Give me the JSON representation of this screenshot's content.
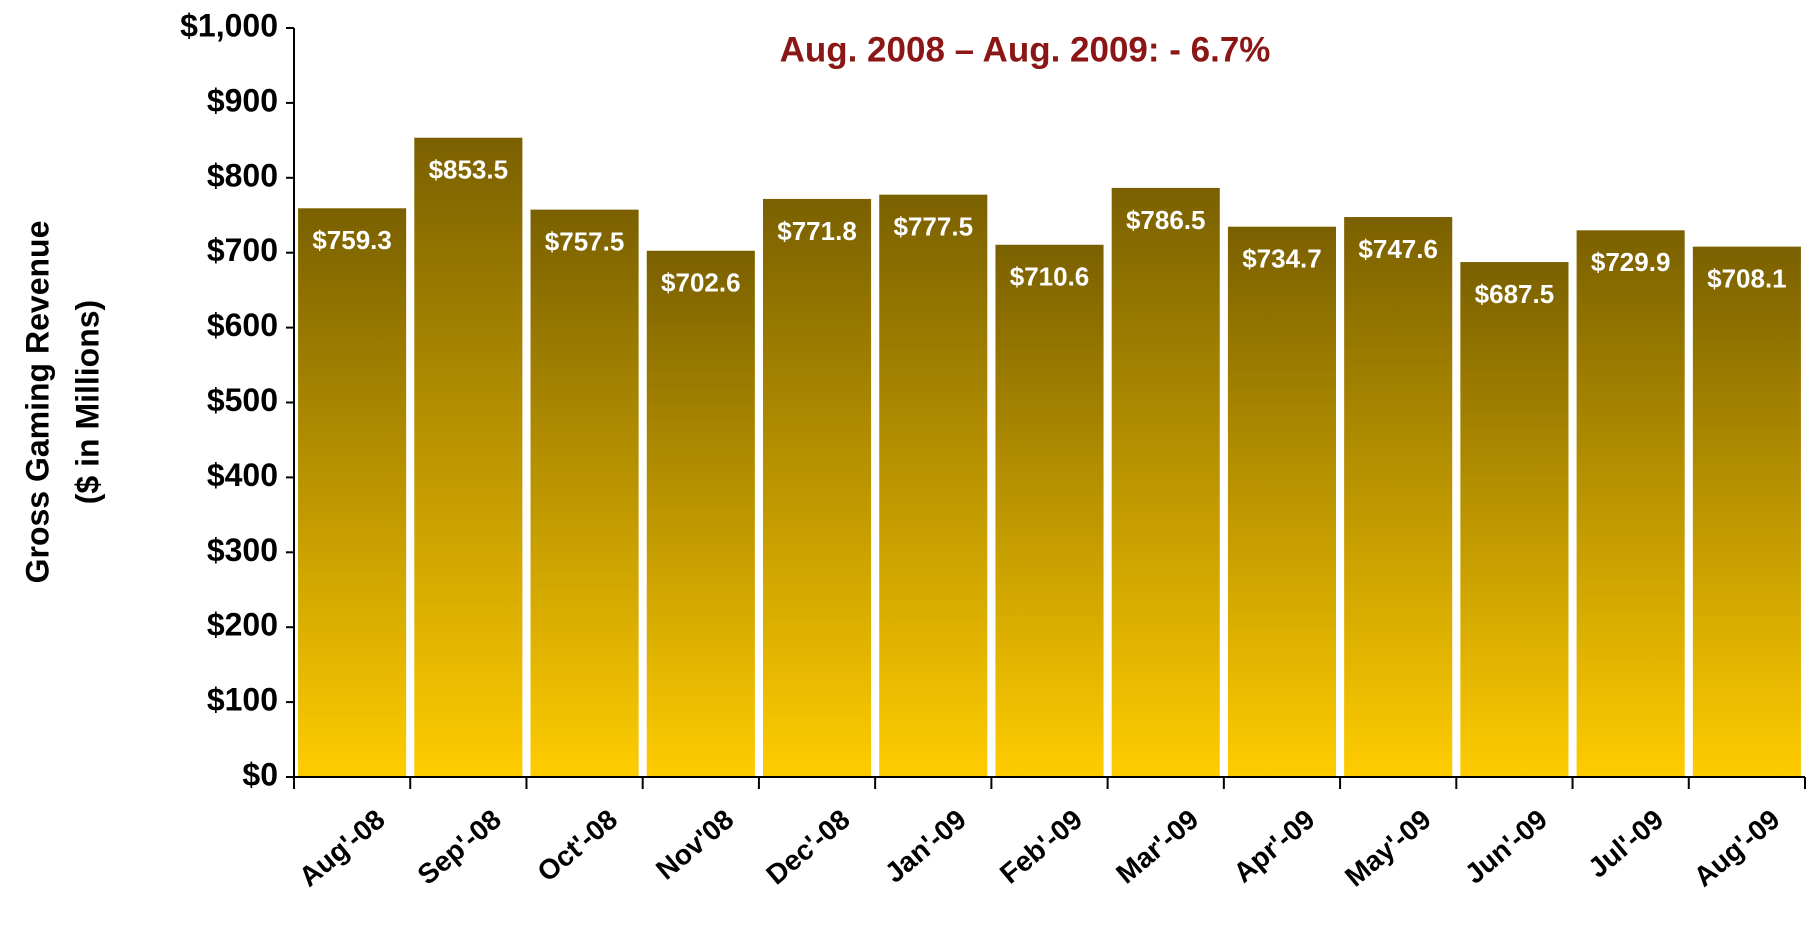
{
  "chart_data": {
    "type": "bar",
    "annotation": "Aug. 2008 – Aug. 2009: - 6.7%",
    "ylabel": [
      "Gross Gaming Revenue",
      "($ in Millions)"
    ],
    "categories": [
      "Aug'-08",
      "Sep'-08",
      "Oct'-08",
      "Nov'08",
      "Dec'-08",
      "Jan'-09",
      "Feb'-09",
      "Mar'-09",
      "Apr'-09",
      "May'-09",
      "Jun'-09",
      "Jul'-09",
      "Aug'-09"
    ],
    "values": [
      759.3,
      853.5,
      757.5,
      702.6,
      771.8,
      777.5,
      710.6,
      786.5,
      734.7,
      747.6,
      687.5,
      729.9,
      708.1
    ],
    "value_labels": [
      "$759.3",
      "$853.5",
      "$757.5",
      "$702.6",
      "$771.8",
      "$777.5",
      "$710.6",
      "$786.5",
      "$734.7",
      "$747.6",
      "$687.5",
      "$729.9",
      "$708.1"
    ],
    "color": [
      "#7a6000",
      "#ffcc00"
    ],
    "ylim": [
      0,
      1000
    ],
    "yticks": [
      {
        "value": 0,
        "label": "$0"
      },
      {
        "value": 100,
        "label": "$100"
      },
      {
        "value": 200,
        "label": "$200"
      },
      {
        "value": 300,
        "label": "$300"
      },
      {
        "value": 400,
        "label": "$400"
      },
      {
        "value": 500,
        "label": "$500"
      },
      {
        "value": 600,
        "label": "$600"
      },
      {
        "value": 700,
        "label": "$700"
      },
      {
        "value": 800,
        "label": "$800"
      },
      {
        "value": 900,
        "label": "$900"
      },
      {
        "value": 1000,
        "label": "$1,000"
      }
    ]
  }
}
